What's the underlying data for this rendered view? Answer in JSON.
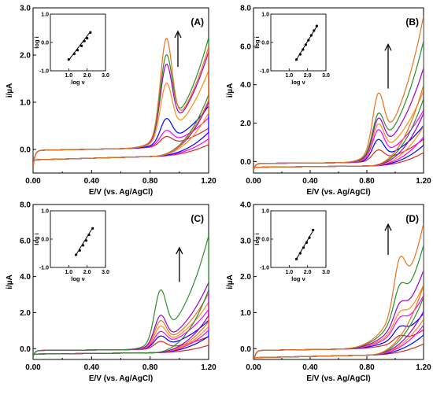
{
  "chart_data": [
    {
      "type": "line",
      "panel_label": "(A)",
      "xlabel": "E/V (vs. Ag/AgCl)",
      "ylabel": "i/µA",
      "xlim": [
        0,
        1.2
      ],
      "ylim": [
        -0.5,
        3.0
      ],
      "xticks": [
        0.0,
        0.4,
        0.8,
        1.2
      ],
      "xtick_labels": [
        "0.00",
        "0.40",
        "0.80",
        "1.20"
      ],
      "yticks": [
        0.0,
        1.0,
        2.0,
        3.0
      ],
      "ytick_labels": [
        "0.0",
        "1.0",
        "2.0",
        "3.0"
      ],
      "peak_potential": 0.91,
      "base_current": -0.02,
      "series": [
        {
          "color": "#d62728",
          "peak": 0.22,
          "end": 0.38
        },
        {
          "color": "#ff00ff",
          "peak": 0.35,
          "end": 0.6
        },
        {
          "color": "#0000ff",
          "peak": 0.6,
          "end": 0.85
        },
        {
          "color": "#ff8c1a",
          "peak": 1.35,
          "end": 1.6
        },
        {
          "color": "#9900cc",
          "peak": 1.75,
          "end": 2.0
        },
        {
          "color": "#2e8b2e",
          "peak": 1.95,
          "end": 2.3
        },
        {
          "color": "#e8721f",
          "peak": 2.3,
          "end": 2.1
        }
      ],
      "inset": {
        "xlabel": "log ν",
        "ylabel": "log i",
        "xlim": [
          0,
          3.0
        ],
        "ylim": [
          -1.0,
          1.0
        ],
        "xticks": [
          1.0,
          2.0,
          3.0
        ],
        "xtick_labels": [
          "1.0",
          "2.0",
          "3.0"
        ],
        "yticks": [
          -1.0,
          0.0,
          1.0
        ],
        "ytick_labels": [
          "-1.0",
          "0.0",
          "1.0"
        ],
        "points": [
          [
            1.0,
            -0.6
          ],
          [
            1.3,
            -0.4
          ],
          [
            1.48,
            -0.27
          ],
          [
            1.7,
            -0.12
          ],
          [
            1.85,
            0.05
          ],
          [
            2.0,
            0.15
          ],
          [
            2.18,
            0.35
          ]
        ],
        "fit": [
          [
            1.0,
            -0.62
          ],
          [
            2.2,
            0.4
          ]
        ]
      },
      "arrow": {
        "x": 0.99,
        "y1": 1.75,
        "y2": 2.5
      }
    },
    {
      "type": "line",
      "panel_label": "(B)",
      "xlabel": "E/V (vs. Ag/AgCl)",
      "ylabel": "i/µA",
      "xlim": [
        0,
        1.2
      ],
      "ylim": [
        -0.6,
        8.0
      ],
      "xticks": [
        0.0,
        0.4,
        0.8,
        1.2
      ],
      "xtick_labels": [
        "0.00",
        "0.40",
        "0.80",
        "1.20"
      ],
      "yticks": [
        0.0,
        2.0,
        4.0,
        6.0,
        8.0
      ],
      "ytick_labels": [
        "0.0",
        "2.0",
        "4.0",
        "6.0",
        "8.0"
      ],
      "peak_potential": 0.88,
      "base_current": -0.1,
      "series": [
        {
          "color": "#d62728",
          "peak": 0.55,
          "end": 1.1
        },
        {
          "color": "#0000ff",
          "peak": 1.1,
          "end": 1.8
        },
        {
          "color": "#ff00ff",
          "peak": 1.6,
          "end": 2.6
        },
        {
          "color": "#ff8c1a",
          "peak": 1.9,
          "end": 3.6
        },
        {
          "color": "#9900cc",
          "peak": 2.2,
          "end": 4.8
        },
        {
          "color": "#2e8b2e",
          "peak": 2.45,
          "end": 6.2
        },
        {
          "color": "#e8721f",
          "peak": 3.5,
          "end": 7.5
        }
      ],
      "inset": {
        "xlabel": "log ν",
        "ylabel": "log i",
        "xlim": [
          0,
          3.0
        ],
        "ylim": [
          -1.0,
          1.0
        ],
        "xticks": [
          1.0,
          2.0,
          3.0
        ],
        "xtick_labels": [
          "1.0",
          "2.0",
          "3.0"
        ],
        "yticks": [
          -1.0,
          0.0,
          1.0
        ],
        "ytick_labels": [
          "-1.0",
          "0.0",
          "1.0"
        ],
        "points": [
          [
            1.4,
            -0.6
          ],
          [
            1.6,
            -0.42
          ],
          [
            1.75,
            -0.25
          ],
          [
            1.9,
            -0.08
          ],
          [
            2.05,
            0.08
          ],
          [
            2.2,
            0.25
          ],
          [
            2.35,
            0.42
          ],
          [
            2.5,
            0.58
          ]
        ],
        "fit": [
          [
            1.35,
            -0.65
          ],
          [
            2.55,
            0.62
          ]
        ]
      },
      "arrow": {
        "x": 0.95,
        "y1": 3.8,
        "y2": 6.1
      }
    },
    {
      "type": "line",
      "panel_label": "(C)",
      "xlabel": "E/V (vs. Ag/AgCl)",
      "ylabel": "i/µA",
      "xlim": [
        0,
        1.2
      ],
      "ylim": [
        -0.6,
        8.0
      ],
      "xticks": [
        0.0,
        0.4,
        0.8,
        1.2
      ],
      "xtick_labels": [
        "0.00",
        "0.40",
        "0.80",
        "1.20"
      ],
      "yticks": [
        0.0,
        2.0,
        4.0,
        6.0,
        8.0
      ],
      "ytick_labels": [
        "0.0",
        "2.0",
        "4.0",
        "6.0",
        "8.0"
      ],
      "peak_potential": 0.87,
      "base_current": -0.1,
      "series": [
        {
          "color": "#d62728",
          "peak": 0.35,
          "end": 0.6
        },
        {
          "color": "#0000ff",
          "peak": 0.65,
          "end": 1.5
        },
        {
          "color": "#ff00ff",
          "peak": 0.9,
          "end": 2.1
        },
        {
          "color": "#ff8c1a",
          "peak": 1.2,
          "end": 2.5
        },
        {
          "color": "#e8721f",
          "peak": 1.5,
          "end": 3.0
        },
        {
          "color": "#9900cc",
          "peak": 1.8,
          "end": 3.6
        },
        {
          "color": "#2e8b2e",
          "peak": 3.2,
          "end": 6.2
        }
      ],
      "inset": {
        "xlabel": "log ν",
        "ylabel": "log i",
        "xlim": [
          0,
          3.0
        ],
        "ylim": [
          -1.0,
          1.0
        ],
        "xticks": [
          1.0,
          2.0,
          3.0
        ],
        "xtick_labels": [
          "1.0",
          "2.0",
          "3.0"
        ],
        "points": [
          [
            1.4,
            -0.55
          ],
          [
            1.6,
            -0.4
          ],
          [
            1.78,
            -0.22
          ],
          [
            1.95,
            -0.05
          ],
          [
            2.1,
            0.15
          ],
          [
            2.3,
            0.38
          ]
        ],
        "fit": [
          [
            1.35,
            -0.6
          ],
          [
            2.3,
            0.4
          ]
        ],
        "yticks": [
          -1.0,
          0.0,
          1.0
        ],
        "ytick_labels": [
          "-1.0",
          "0.0",
          "1.0"
        ]
      },
      "arrow": {
        "x": 1.0,
        "y1": 3.7,
        "y2": 5.6
      }
    },
    {
      "type": "line",
      "panel_label": "(D)",
      "xlabel": "E/V (vs. Ag/AgCl)",
      "ylabel": "i/µA",
      "xlim": [
        0,
        1.2
      ],
      "ylim": [
        -0.3,
        4.0
      ],
      "xticks": [
        0.0,
        0.4,
        0.8,
        1.2
      ],
      "xtick_labels": [
        "0.00",
        "0.40",
        "0.80",
        "1.20"
      ],
      "yticks": [
        0.0,
        1.0,
        2.0,
        3.0,
        4.0
      ],
      "ytick_labels": [
        "0.0",
        "1.0",
        "2.0",
        "3.0",
        "4.0"
      ],
      "peak_potential": 1.03,
      "base_current": -0.05,
      "series": [
        {
          "color": "#d62728",
          "peak": 0.3,
          "end": 0.45
        },
        {
          "color": "#0000ff",
          "peak": 0.55,
          "end": 0.9
        },
        {
          "color": "#ff00ff",
          "peak": 0.8,
          "end": 1.4
        },
        {
          "color": "#ff8c1a",
          "peak": 0.95,
          "end": 1.7
        },
        {
          "color": "#9900cc",
          "peak": 1.2,
          "end": 2.1
        },
        {
          "color": "#2e8b2e",
          "peak": 1.7,
          "end": 2.8
        },
        {
          "color": "#e8721f",
          "peak": 2.45,
          "end": 3.4
        }
      ],
      "inset": {
        "xlabel": "log ν",
        "ylabel": "log i",
        "xlim": [
          0,
          3.0
        ],
        "ylim": [
          -1.0,
          1.0
        ],
        "xticks": [
          1.0,
          2.0,
          3.0
        ],
        "xtick_labels": [
          "1.0",
          "2.0",
          "3.0"
        ],
        "yticks": [
          -1.0,
          0.0,
          1.0
        ],
        "ytick_labels": [
          "-1.0",
          "0.0",
          "1.0"
        ],
        "points": [
          [
            1.4,
            -0.7
          ],
          [
            1.6,
            -0.5
          ],
          [
            1.78,
            -0.3
          ],
          [
            1.95,
            -0.12
          ],
          [
            2.1,
            0.05
          ],
          [
            2.3,
            0.32
          ]
        ],
        "fit": [
          [
            1.35,
            -0.75
          ],
          [
            2.35,
            0.35
          ]
        ]
      },
      "arrow": {
        "x": 0.95,
        "y1": 2.6,
        "y2": 3.45
      }
    }
  ]
}
